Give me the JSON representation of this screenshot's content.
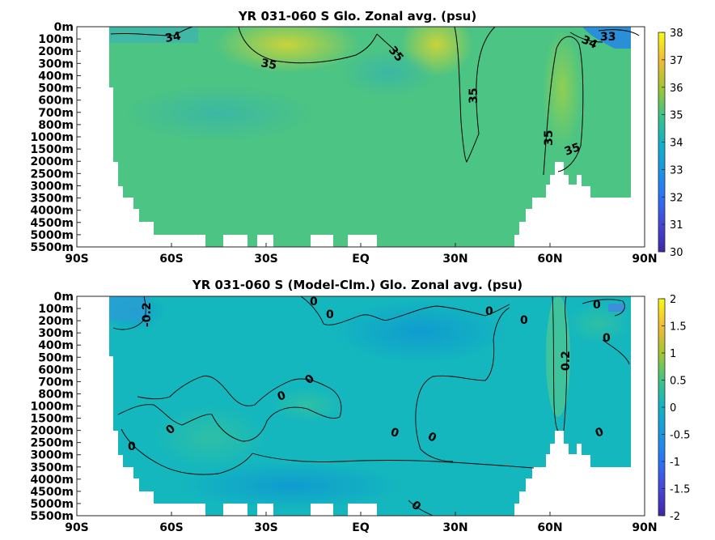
{
  "chart_data": [
    {
      "type": "heatmap",
      "title": "YR 031-060 S Glo. Zonal avg. (psu)",
      "x_ticks": [
        "90S",
        "60S",
        "30S",
        "EQ",
        "30N",
        "60N",
        "90N"
      ],
      "y_ticks": [
        "0m",
        "100m",
        "200m",
        "300m",
        "400m",
        "500m",
        "600m",
        "700m",
        "800m",
        "1000m",
        "1500m",
        "2000m",
        "2500m",
        "3000m",
        "3500m",
        "4000m",
        "4500m",
        "5000m",
        "5500m"
      ],
      "colorbar": {
        "min": 30,
        "max": 38,
        "ticks": [
          "38",
          "37",
          "36",
          "35",
          "34",
          "33",
          "32",
          "31",
          "30"
        ]
      },
      "contour_labels": [
        "34",
        "35",
        "35",
        "35",
        "35",
        "35",
        "34",
        "33"
      ],
      "colors": {
        "background": "#4cc483",
        "fresh": "#3fb9a6",
        "salty": "#c2d13c",
        "very_fresh": "#2a8fd6",
        "mask": "#ffffff"
      }
    },
    {
      "type": "heatmap",
      "title": "YR 031-060 S (Model-Clm.) Glo. Zonal avg. (psu)",
      "x_ticks": [
        "90S",
        "60S",
        "30S",
        "EQ",
        "30N",
        "60N",
        "90N"
      ],
      "y_ticks": [
        "0m",
        "100m",
        "200m",
        "300m",
        "400m",
        "500m",
        "600m",
        "700m",
        "800m",
        "1000m",
        "1500m",
        "2000m",
        "2500m",
        "3000m",
        "3500m",
        "4000m",
        "4500m",
        "5000m",
        "5500m"
      ],
      "colorbar": {
        "min": -2,
        "max": 2,
        "ticks": [
          "2",
          "1.5",
          "1",
          "0.5",
          "0",
          "-0.5",
          "-1",
          "-1.5",
          "-2"
        ]
      },
      "contour_labels": [
        "-0.2",
        "0",
        "0",
        "0",
        "0",
        "0",
        "0",
        "0",
        "0",
        "0",
        "0",
        "0.2",
        "0",
        "0",
        "0",
        "0"
      ],
      "colors": {
        "background": "#14b7be",
        "negative": "#13a8c8",
        "positive": "#33c1a3",
        "mask": "#ffffff"
      }
    }
  ]
}
